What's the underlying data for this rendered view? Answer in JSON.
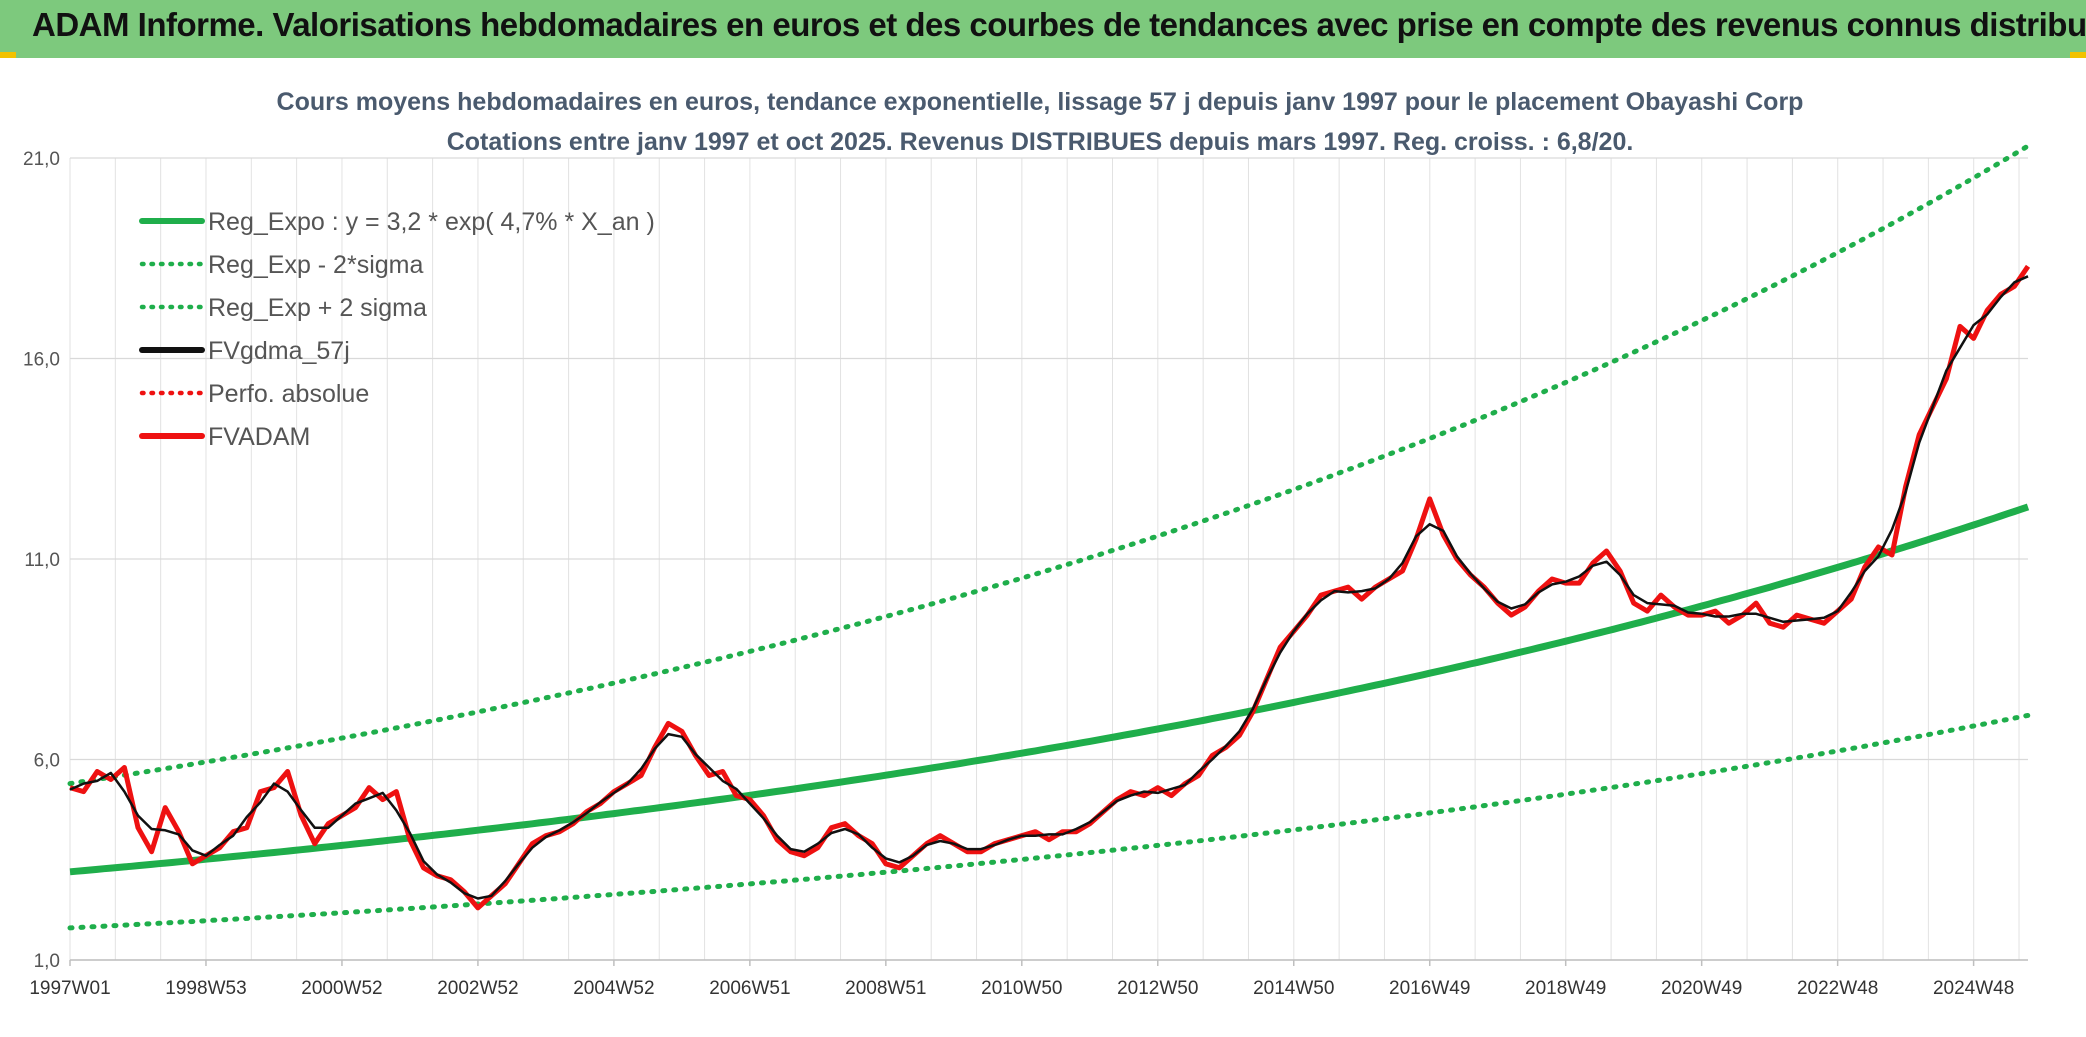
{
  "banner": {
    "title": "ADAM Informe. Valorisations hebdomadaires en euros et des courbes de tendances avec prise en compte des revenus connus distribués"
  },
  "colors": {
    "banner_bg": "#7dc97d",
    "trend_green": "#1fae4b",
    "price_red": "#ee1111",
    "smooth_black": "#111111"
  },
  "chart_data": {
    "type": "line",
    "title": "Cours moyens hebdomadaires en euros, tendance exponentielle, lissage 57 j depuis janv 1997 pour le placement Obayashi Corp",
    "subtitle": "Cotations entre janv 1997 et oct 2025. Revenus DISTRIBUES depuis mars 1997. Reg. croiss. : 6,8/20.",
    "xlabel": "",
    "ylabel": "",
    "x_range": [
      1997.0,
      2025.8
    ],
    "ylim": [
      1.0,
      21.0
    ],
    "y_ticks": [
      "1,0",
      "6,0",
      "11,0",
      "16,0",
      "21,0"
    ],
    "y_tick_values": [
      1,
      6,
      11,
      16,
      21
    ],
    "x_ticks": [
      "1997W01",
      "1998W53",
      "2000W52",
      "2002W52",
      "2004W52",
      "2006W51",
      "2008W51",
      "2010W50",
      "2012W50",
      "2014W50",
      "2016W49",
      "2018W49",
      "2020W49",
      "2022W48",
      "2024W48"
    ],
    "x_tick_values": [
      1997.0,
      1999.0,
      2001.0,
      2003.0,
      2005.0,
      2007.0,
      2009.0,
      2011.0,
      2013.0,
      2015.0,
      2017.0,
      2019.0,
      2021.0,
      2023.0,
      2025.0
    ],
    "grid": true,
    "legend_position": "top-left",
    "legend": [
      {
        "label": "Reg_Expo : y = 3,2 * exp( 4,7% *  X_an )",
        "style": "solid",
        "color": "#1fae4b"
      },
      {
        "label": "Reg_Exp - 2*sigma",
        "style": "dotted",
        "color": "#1fae4b"
      },
      {
        "label": "Reg_Exp + 2 sigma",
        "style": "dotted",
        "color": "#1fae4b"
      },
      {
        "label": "FVgdma_57j",
        "style": "solid",
        "color": "#111111"
      },
      {
        "label": "Perfo. absolue",
        "style": "dotted",
        "color": "#ee1111"
      },
      {
        "label": "FVADAM",
        "style": "solid",
        "color": "#ee1111"
      }
    ],
    "series": [
      {
        "name": "Reg_Expo",
        "formula": "3.2*exp(0.047*(t-1997))",
        "x": [
          1997.0,
          2025.8
        ],
        "values": [
          3.2,
          12.3
        ]
      },
      {
        "name": "Reg_Exp - 2*sigma",
        "x": [
          1997.0,
          2025.8
        ],
        "values": [
          1.8,
          7.1
        ]
      },
      {
        "name": "Reg_Exp + 2 sigma",
        "x": [
          1997.0,
          2025.8
        ],
        "values": [
          5.4,
          21.3
        ]
      },
      {
        "name": "FVADAM",
        "x": [
          1997.0,
          1997.2,
          1997.4,
          1997.6,
          1997.8,
          1998.0,
          1998.2,
          1998.4,
          1998.6,
          1998.8,
          1999.0,
          1999.2,
          1999.4,
          1999.6,
          1999.8,
          2000.0,
          2000.2,
          2000.4,
          2000.6,
          2000.8,
          2001.0,
          2001.2,
          2001.4,
          2001.6,
          2001.8,
          2002.0,
          2002.2,
          2002.4,
          2002.6,
          2002.8,
          2003.0,
          2003.2,
          2003.4,
          2003.6,
          2003.8,
          2004.0,
          2004.2,
          2004.4,
          2004.6,
          2004.8,
          2005.0,
          2005.2,
          2005.4,
          2005.6,
          2005.8,
          2006.0,
          2006.2,
          2006.4,
          2006.6,
          2006.8,
          2007.0,
          2007.2,
          2007.4,
          2007.6,
          2007.8,
          2008.0,
          2008.2,
          2008.4,
          2008.6,
          2008.8,
          2009.0,
          2009.2,
          2009.4,
          2009.6,
          2009.8,
          2010.0,
          2010.2,
          2010.4,
          2010.6,
          2010.8,
          2011.0,
          2011.2,
          2011.4,
          2011.6,
          2011.8,
          2012.0,
          2012.2,
          2012.4,
          2012.6,
          2012.8,
          2013.0,
          2013.2,
          2013.4,
          2013.6,
          2013.8,
          2014.0,
          2014.2,
          2014.4,
          2014.6,
          2014.8,
          2015.0,
          2015.2,
          2015.4,
          2015.6,
          2015.8,
          2016.0,
          2016.2,
          2016.4,
          2016.6,
          2016.8,
          2017.0,
          2017.2,
          2017.4,
          2017.6,
          2017.8,
          2018.0,
          2018.2,
          2018.4,
          2018.6,
          2018.8,
          2019.0,
          2019.2,
          2019.4,
          2019.6,
          2019.8,
          2020.0,
          2020.2,
          2020.4,
          2020.6,
          2020.8,
          2021.0,
          2021.2,
          2021.4,
          2021.6,
          2021.8,
          2022.0,
          2022.2,
          2022.4,
          2022.6,
          2022.8,
          2023.0,
          2023.2,
          2023.4,
          2023.6,
          2023.8,
          2024.0,
          2024.2,
          2024.4,
          2024.6,
          2024.8,
          2025.0,
          2025.2,
          2025.4,
          2025.6,
          2025.8
        ],
        "values": [
          5.3,
          5.2,
          5.7,
          5.5,
          5.8,
          4.3,
          3.7,
          4.8,
          4.2,
          3.4,
          3.6,
          3.8,
          4.2,
          4.3,
          5.2,
          5.3,
          5.7,
          4.6,
          3.9,
          4.4,
          4.6,
          4.8,
          5.3,
          5.0,
          5.2,
          4.0,
          3.3,
          3.1,
          3.0,
          2.7,
          2.3,
          2.6,
          2.9,
          3.4,
          3.9,
          4.1,
          4.2,
          4.4,
          4.7,
          4.9,
          5.2,
          5.4,
          5.6,
          6.3,
          6.9,
          6.7,
          6.1,
          5.6,
          5.7,
          5.1,
          5.0,
          4.6,
          4.0,
          3.7,
          3.6,
          3.8,
          4.3,
          4.4,
          4.1,
          3.9,
          3.4,
          3.3,
          3.6,
          3.9,
          4.1,
          3.9,
          3.7,
          3.7,
          3.9,
          4.0,
          4.1,
          4.2,
          4.0,
          4.2,
          4.2,
          4.4,
          4.7,
          5.0,
          5.2,
          5.1,
          5.3,
          5.1,
          5.4,
          5.6,
          6.1,
          6.3,
          6.6,
          7.2,
          8.0,
          8.8,
          9.2,
          9.6,
          10.1,
          10.2,
          10.3,
          10.0,
          10.3,
          10.5,
          10.7,
          11.5,
          12.5,
          11.6,
          11.0,
          10.6,
          10.3,
          9.9,
          9.6,
          9.8,
          10.2,
          10.5,
          10.4,
          10.4,
          10.9,
          11.2,
          10.7,
          9.9,
          9.7,
          10.1,
          9.8,
          9.6,
          9.6,
          9.7,
          9.4,
          9.6,
          9.9,
          9.4,
          9.3,
          9.6,
          9.5,
          9.4,
          9.7,
          10.0,
          10.8,
          11.3,
          11.1,
          12.8,
          14.1,
          14.8,
          15.5,
          16.8,
          16.5,
          17.2,
          17.6,
          17.8,
          18.3
        ]
      }
    ]
  }
}
